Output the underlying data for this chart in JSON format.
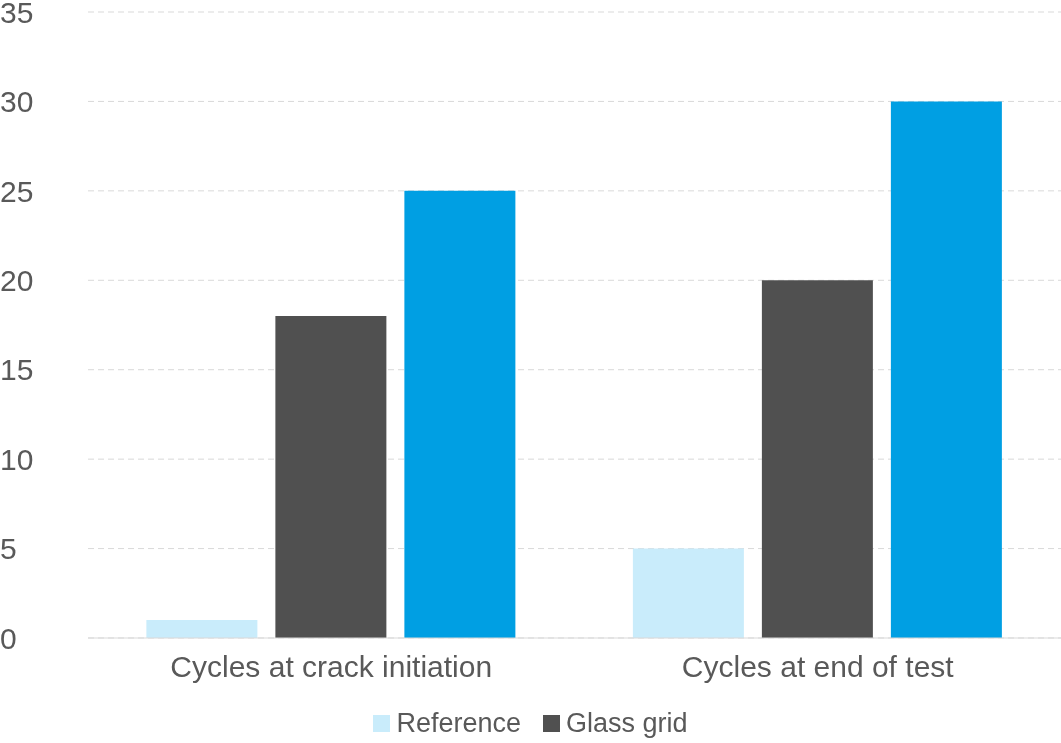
{
  "chart_data": {
    "type": "bar",
    "categories": [
      "Cycles at crack initiation",
      "Cycles at end of test"
    ],
    "series": [
      {
        "name": "Reference",
        "color": "#c9ecfb",
        "values": [
          1,
          5
        ]
      },
      {
        "name": "Glass grid",
        "color": "#505050",
        "values": [
          18,
          20
        ]
      },
      {
        "color": "#009fe3",
        "values": [
          25,
          30
        ]
      }
    ],
    "ylim": [
      0,
      35
    ],
    "yticks": [
      0,
      5,
      10,
      15,
      20,
      25,
      30,
      35
    ],
    "grid": "y",
    "legend": "bottom"
  }
}
